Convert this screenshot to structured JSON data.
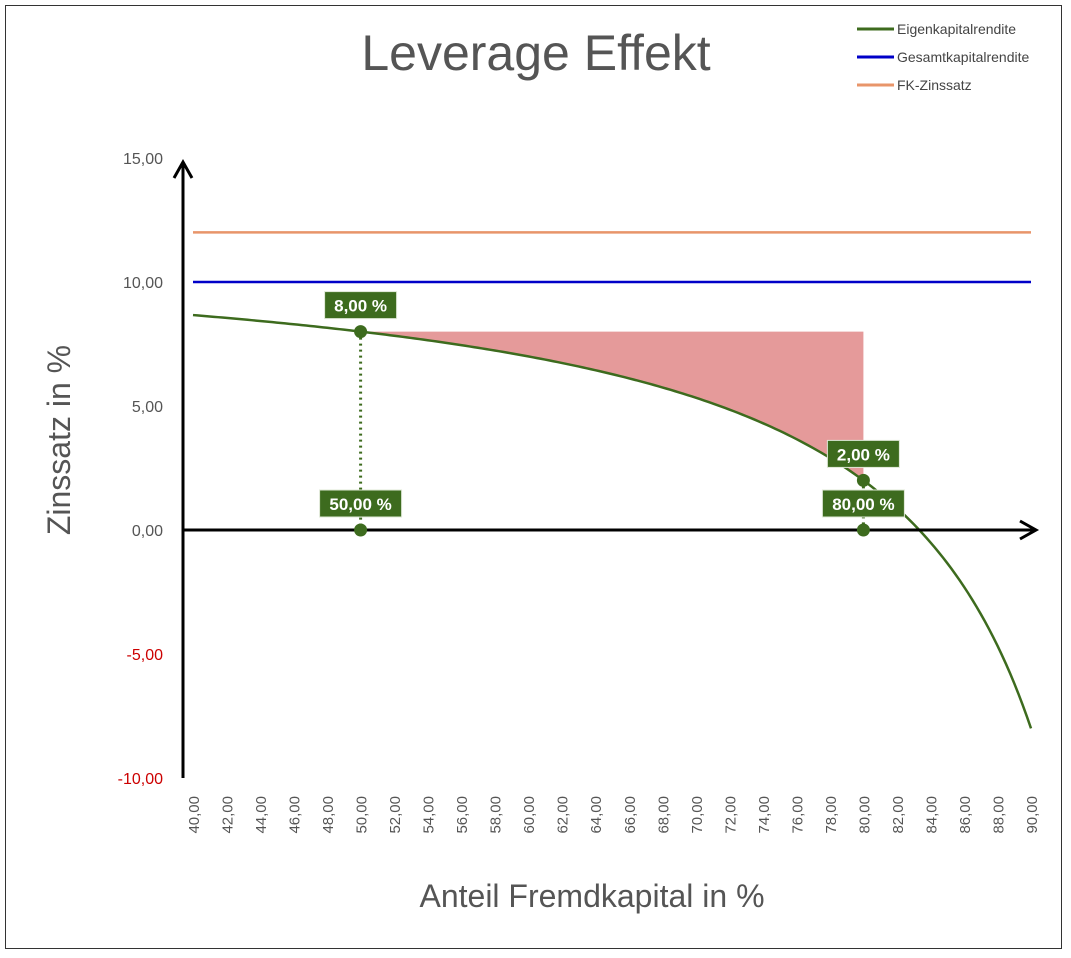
{
  "chart_data": {
    "type": "line",
    "title": "Leverage Effekt",
    "xlabel": "Anteil Fremdkapital in %",
    "ylabel": "Zinssatz in %",
    "xlim": [
      40,
      90
    ],
    "ylim": [
      -10,
      15
    ],
    "x_ticks": [
      "40,00",
      "42,00",
      "44,00",
      "46,00",
      "48,00",
      "50,00",
      "52,00",
      "54,00",
      "56,00",
      "58,00",
      "60,00",
      "62,00",
      "64,00",
      "66,00",
      "68,00",
      "70,00",
      "72,00",
      "74,00",
      "76,00",
      "78,00",
      "80,00",
      "82,00",
      "84,00",
      "86,00",
      "88,00",
      "90,00"
    ],
    "y_ticks": [
      {
        "value": 15,
        "label": "15,00"
      },
      {
        "value": 10,
        "label": "10,00"
      },
      {
        "value": 5,
        "label": "5,00"
      },
      {
        "value": 0,
        "label": "0,00"
      },
      {
        "value": -5,
        "label": "-5,00"
      },
      {
        "value": -10,
        "label": "-10,00"
      }
    ],
    "negative_tick_color": "#cc0000",
    "grid": false,
    "legend_position": "top-right",
    "series": [
      {
        "name": "Eigenkapitalrendite",
        "color": "#3d6b1e",
        "formula_note": "",
        "x": [
          40,
          42,
          44,
          46,
          48,
          50,
          52,
          54,
          56,
          58,
          60,
          62,
          64,
          66,
          68,
          70,
          72,
          74,
          76,
          78,
          80,
          82,
          84,
          86,
          88,
          90
        ],
        "values": [
          8.67,
          8.55,
          8.43,
          8.3,
          8.15,
          8.0,
          7.83,
          7.65,
          7.45,
          7.24,
          7.0,
          6.74,
          6.44,
          6.12,
          5.75,
          5.33,
          4.86,
          4.31,
          3.67,
          2.91,
          2.0,
          0.89,
          -0.5,
          -2.29,
          -4.67,
          -8.0
        ]
      },
      {
        "name": "Gesamtkapitalrendite",
        "color": "#0000c8",
        "x": [
          40,
          90
        ],
        "values": [
          10,
          10
        ]
      },
      {
        "name": "FK-Zinssatz",
        "color": "#e8956a",
        "x": [
          40,
          90
        ],
        "values": [
          12,
          12
        ]
      }
    ],
    "shaded_area": {
      "x_from": 50,
      "x_to": 80,
      "y_top": 8,
      "color": "#e59a9a"
    },
    "annotations": [
      {
        "x": 50,
        "y": 8,
        "label": "8,00 %"
      },
      {
        "x": 50,
        "y": 0,
        "label": "50,00 %"
      },
      {
        "x": 80,
        "y": 2,
        "label": "2,00 %"
      },
      {
        "x": 80,
        "y": 0,
        "label": "80,00 %"
      }
    ],
    "annotation_color": "#3d6b1e"
  }
}
